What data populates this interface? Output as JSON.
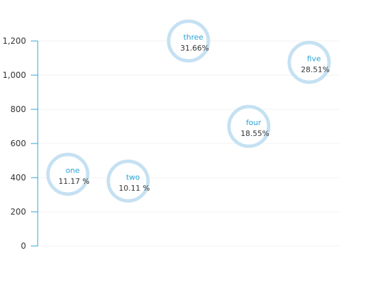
{
  "chart_data": {
    "type": "scatter",
    "title": "",
    "xlabel": "",
    "ylabel": "",
    "ylim": [
      0,
      1200
    ],
    "yticks": [
      "0",
      "200",
      "400",
      "600",
      "800",
      "1,000",
      "1,200"
    ],
    "grid": true,
    "points": [
      {
        "name": "one",
        "y": 420,
        "label": "11.17 %"
      },
      {
        "name": "two",
        "y": 380,
        "label": "10.11 %"
      },
      {
        "name": "three",
        "y": 1200,
        "label": "31.66%"
      },
      {
        "name": "four",
        "y": 700,
        "label": "18.55%"
      },
      {
        "name": "five",
        "y": 1075,
        "label": "28.51%"
      }
    ],
    "colors": {
      "axis": "#29a3d6",
      "ring": "#c5e1f2",
      "name_text": "#29a3d6",
      "value_text": "#333333",
      "grid": "#f2f2f2"
    }
  }
}
